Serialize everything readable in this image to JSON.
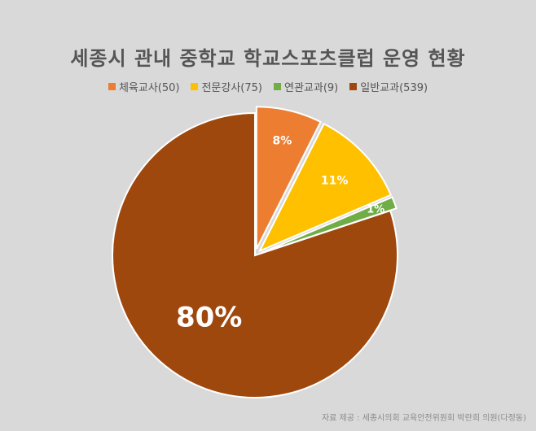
{
  "chart_data": {
    "type": "pie",
    "title": "세종시 관내 중학교 학교스포츠클럽 운영 현황",
    "legend_position": "top",
    "slices": [
      {
        "label": "체육교사(50)",
        "value": 50,
        "percent_label": "8%",
        "color": "#ed7d31",
        "exploded": true
      },
      {
        "label": "전문강사(75)",
        "value": 75,
        "percent_label": "11%",
        "color": "#ffc000",
        "exploded": true
      },
      {
        "label": "연관교과(9)",
        "value": 9,
        "percent_label": "1%",
        "color": "#70ad47",
        "exploded": true
      },
      {
        "label": "일반교과(539)",
        "value": 539,
        "percent_label": "80%",
        "color": "#9e480e",
        "exploded": false
      }
    ]
  },
  "source_text": "자료 제공 : 세종시의회 교육안전위원회 박란희 의원(다정동)"
}
